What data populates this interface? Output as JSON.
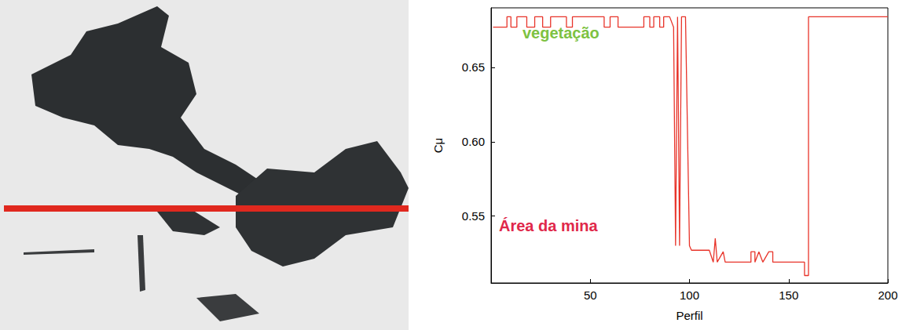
{
  "chart_data": {
    "type": "line",
    "x_label": "Perfil",
    "y_label": "Cμ",
    "annotations": [
      {
        "text": "vegetação",
        "color": "#7dc242"
      },
      {
        "text": "Área da mina",
        "color": "#e0284a"
      }
    ],
    "color": "#e8342a",
    "x": [
      1,
      8,
      8,
      10,
      10,
      13,
      13,
      18,
      18,
      22,
      22,
      26,
      26,
      30,
      30,
      38,
      38,
      41,
      41,
      57,
      57,
      60,
      60,
      64,
      64,
      77,
      77,
      80,
      80,
      82,
      82,
      85,
      85,
      87,
      87,
      90,
      92,
      93,
      94,
      95,
      96,
      98,
      100,
      101,
      110,
      112,
      113,
      114,
      117,
      118,
      131,
      131,
      133,
      133,
      135,
      137,
      140,
      142,
      142,
      158,
      158,
      160,
      160,
      200
    ],
    "values": [
      0.677,
      0.677,
      0.684,
      0.684,
      0.677,
      0.677,
      0.684,
      0.684,
      0.677,
      0.677,
      0.684,
      0.684,
      0.677,
      0.677,
      0.684,
      0.684,
      0.677,
      0.677,
      0.684,
      0.684,
      0.677,
      0.677,
      0.684,
      0.684,
      0.677,
      0.677,
      0.684,
      0.684,
      0.677,
      0.677,
      0.684,
      0.684,
      0.677,
      0.677,
      0.684,
      0.684,
      0.677,
      0.53,
      0.684,
      0.53,
      0.684,
      0.684,
      0.53,
      0.527,
      0.527,
      0.519,
      0.535,
      0.519,
      0.526,
      0.519,
      0.519,
      0.526,
      0.526,
      0.519,
      0.526,
      0.519,
      0.526,
      0.526,
      0.519,
      0.519,
      0.51,
      0.51,
      0.684,
      0.684
    ],
    "xlim": [
      0,
      200
    ],
    "xticks": [
      50,
      100,
      150,
      200
    ],
    "ylim": [
      0.505,
      0.69
    ],
    "yticks": [
      0.55,
      {
        "value": 0.6,
        "label": "0.60"
      },
      0.65
    ],
    "grid": false
  }
}
